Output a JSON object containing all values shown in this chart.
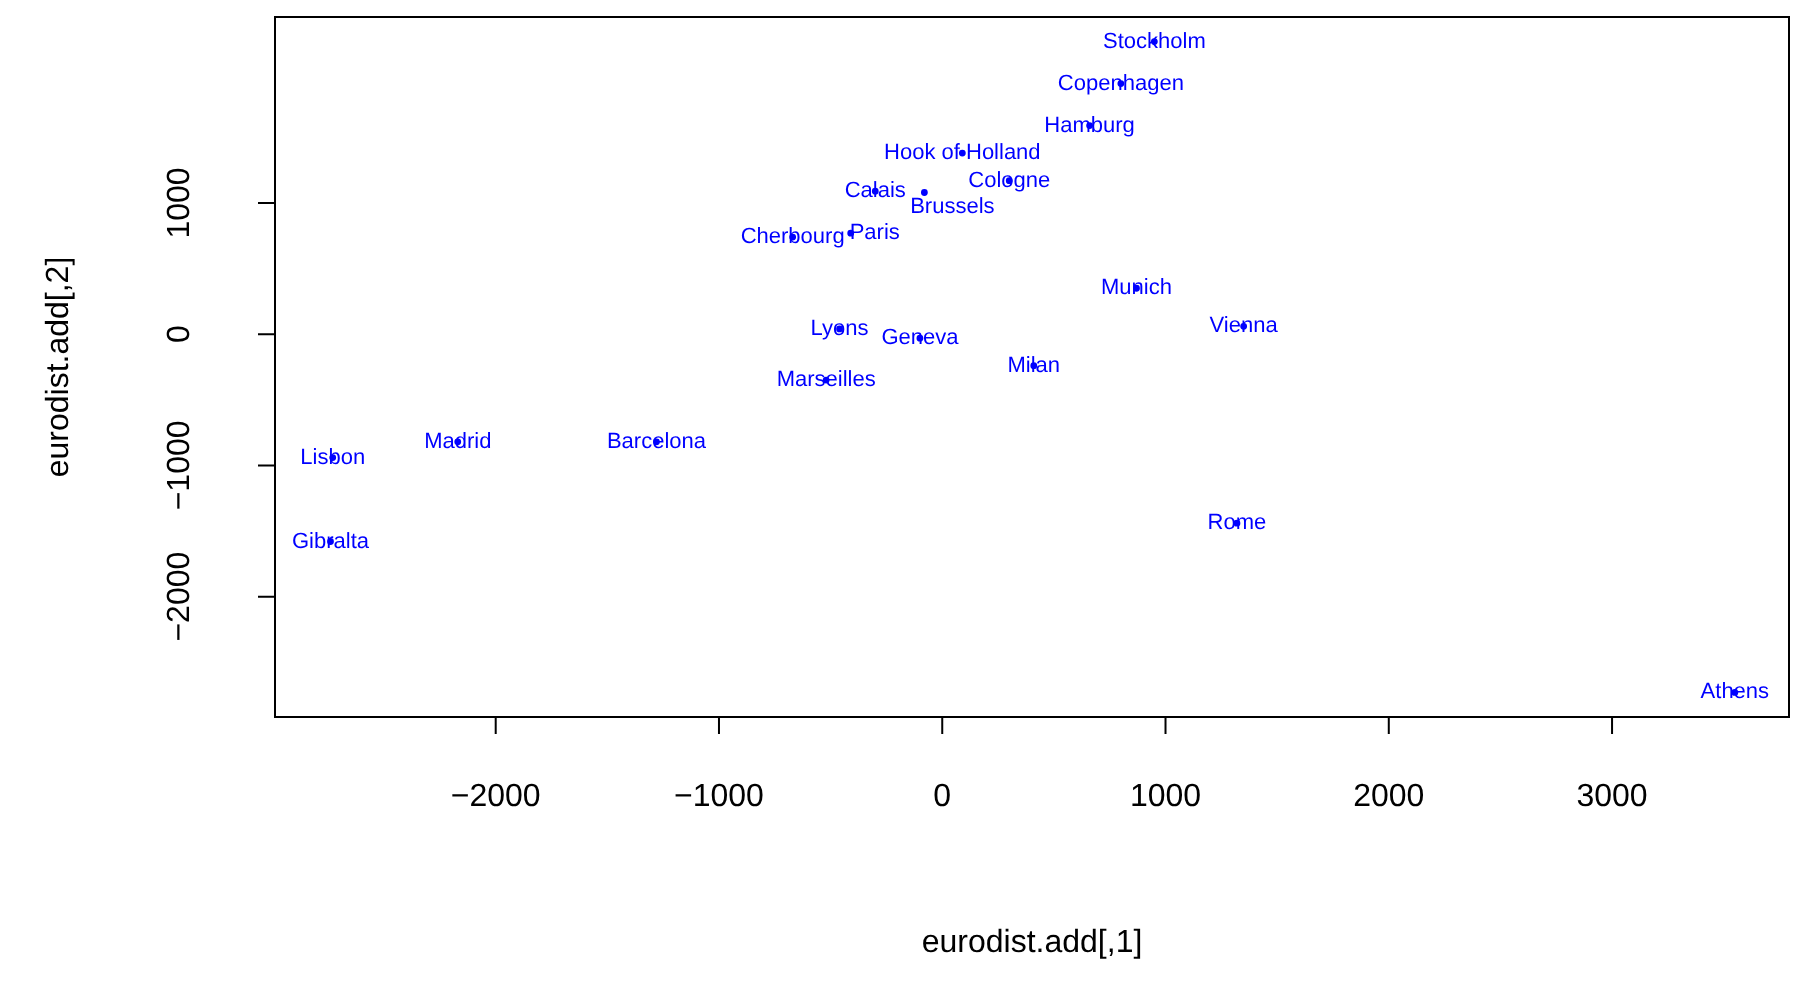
{
  "chart_data": {
    "type": "scatter",
    "xlabel": "eurodist.add[,1]",
    "ylabel": "eurodist.add[,2]",
    "xlim": [
      -2993,
      3797
    ],
    "ylim": [
      -2925,
      2425
    ],
    "xticks": [
      {
        "value": -2000,
        "label": "−2000"
      },
      {
        "value": -1000,
        "label": "−1000"
      },
      0,
      1000,
      2000,
      3000
    ],
    "yticks": [
      {
        "value": -2000,
        "label": "−2000"
      },
      {
        "value": -1000,
        "label": "−1000"
      },
      0,
      1000
    ],
    "grid": false,
    "legend": false,
    "marker": "circle",
    "series": [
      {
        "color": "#0000ff",
        "x": [
          950,
          800,
          660,
          90,
          300,
          -300,
          -80,
          -670,
          -410,
          870,
          1350,
          -460,
          -100,
          410,
          -520,
          -2170,
          -1280,
          -2730,
          -2740,
          1320,
          3550
        ],
        "values": [
          2230,
          1910,
          1590,
          1380,
          1170,
          1090,
          1080,
          740,
          770,
          350,
          60,
          40,
          -30,
          -240,
          -350,
          -820,
          -820,
          -940,
          -1580,
          -1440,
          -2730
        ],
        "value_labels": [
          "Stockholm",
          "Copenhagen",
          "Hamburg",
          "Hook of Holland",
          "Cologne",
          "Calais",
          "Brussels",
          "Cherbourg",
          "Paris",
          "Munich",
          "Vienna",
          "Lyons",
          "Geneva",
          "Milan",
          "Marseilles",
          "Madrid",
          "Barcelona",
          "Lisbon",
          "Gibralta",
          "Rome",
          "Athens"
        ]
      }
    ]
  }
}
